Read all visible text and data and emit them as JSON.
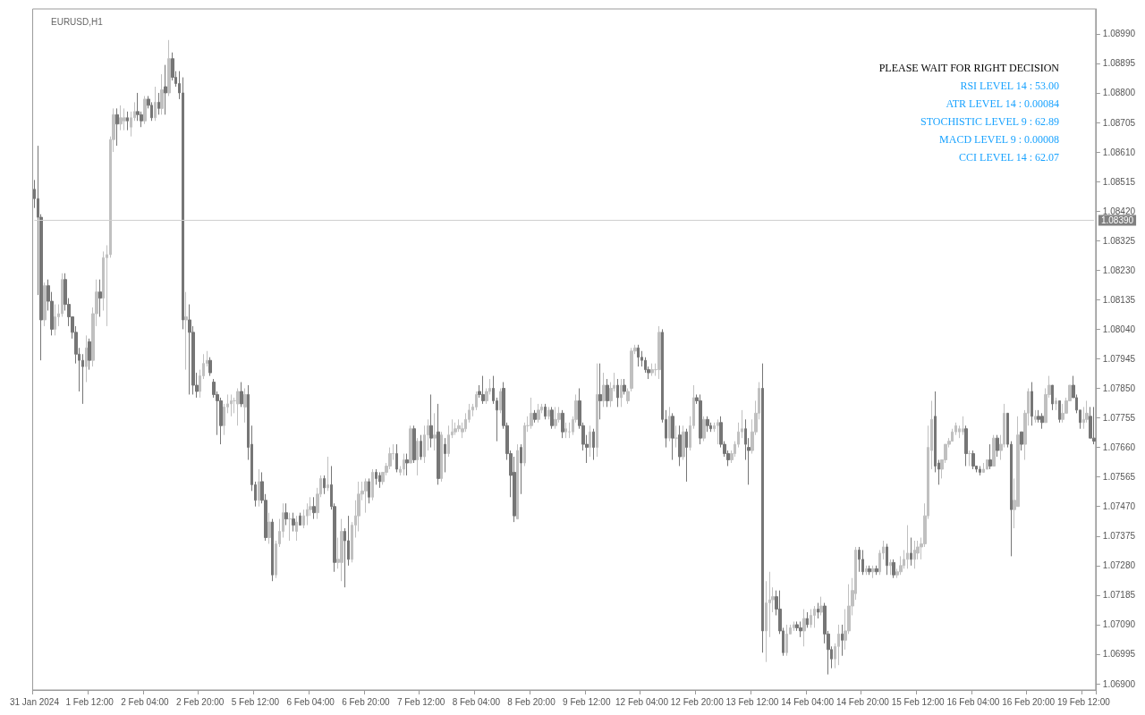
{
  "chart_data": {
    "type": "candlestick",
    "title": "EURUSD,H1",
    "annotations": [
      "PLEASE WAIT FOR RIGHT DECISION",
      "RSI LEVEL 14 : 53.00",
      "ATR LEVEL 14 : 0.00084",
      "STOCHISTIC LEVEL 9 : 62.89",
      "MACD LEVEL 9 : 0.00008",
      "CCI LEVEL 14 : 62.07"
    ],
    "colors": [
      "#767676",
      "#767676",
      "#767676",
      "#c0c0c0",
      "#767676",
      "#767676",
      "#c0c0c0",
      "#c0c0c0",
      "#c0c0c0",
      "#767676",
      "#767676",
      "#767676",
      "#767676",
      "#767676",
      "#767676",
      "#c0c0c0",
      "#767676",
      "#c0c0c0",
      "#c0c0c0",
      "#767676",
      "#c0c0c0",
      "#c0c0c0",
      "#c0c0c0",
      "#c0c0c0",
      "#767676",
      "#c0c0c0",
      "#c0c0c0",
      "#767676",
      "#c0c0c0",
      "#c0c0c0",
      "#767676",
      "#767676",
      "#c0c0c0",
      "#767676",
      "#767676",
      "#c0c0c0",
      "#767676",
      "#c0c0c0",
      "#767676",
      "#c0c0c0",
      "#767676",
      "#767676",
      "#767676",
      "#767676",
      "#c0c0c0",
      "#767676",
      "#767676",
      "#767676",
      "#c0c0c0",
      "#c0c0c0",
      "#c0c0c0",
      "#767676",
      "#767676",
      "#767676",
      "#767676",
      "#c0c0c0",
      "#c0c0c0",
      "#c0c0c0",
      "#c0c0c0",
      "#c0c0c0",
      "#767676",
      "#c0c0c0",
      "#767676",
      "#767676",
      "#767676",
      "#c0c0c0",
      "#767676",
      "#767676",
      "#c0c0c0",
      "#767676",
      "#c0c0c0",
      "#c0c0c0",
      "#c0c0c0",
      "#767676",
      "#c0c0c0",
      "#767676",
      "#c0c0c0",
      "#767676",
      "#c0c0c0",
      "#c0c0c0",
      "#c0c0c0",
      "#767676",
      "#c0c0c0",
      "#c0c0c0",
      "#767676",
      "#c0c0c0",
      "#767676",
      "#767676",
      "#c0c0c0",
      "#c0c0c0",
      "#767676",
      "#767676",
      "#c0c0c0",
      "#c0c0c0",
      "#c0c0c0",
      "#c0c0c0",
      "#c0c0c0",
      "#767676",
      "#c0c0c0",
      "#767676",
      "#767676",
      "#c0c0c0",
      "#c0c0c0",
      "#c0c0c0",
      "#c0c0c0",
      "#767676",
      "#c0c0c0",
      "#c0c0c0",
      "#767676",
      "#c0c0c0",
      "#767676",
      "#c0c0c0",
      "#767676",
      "#c0c0c0",
      "#c0c0c0",
      "#767676",
      "#c0c0c0",
      "#767676",
      "#c0c0c0",
      "#767676",
      "#c0c0c0",
      "#c0c0c0",
      "#c0c0c0",
      "#c0c0c0",
      "#c0c0c0",
      "#c0c0c0",
      "#c0c0c0",
      "#c0c0c0",
      "#c0c0c0",
      "#767676",
      "#767676",
      "#c0c0c0",
      "#c0c0c0",
      "#767676",
      "#767676",
      "#c0c0c0",
      "#767676",
      "#767676",
      "#767676",
      "#767676",
      "#c0c0c0",
      "#767676",
      "#c0c0c0",
      "#c0c0c0",
      "#c0c0c0",
      "#767676",
      "#c0c0c0",
      "#c0c0c0",
      "#767676",
      "#c0c0c0",
      "#767676",
      "#c0c0c0",
      "#c0c0c0",
      "#767676",
      "#c0c0c0",
      "#c0c0c0",
      "#c0c0c0",
      "#c0c0c0",
      "#767676",
      "#767676",
      "#767676",
      "#c0c0c0",
      "#767676",
      "#c0c0c0",
      "#767676",
      "#c0c0c0",
      "#767676",
      "#c0c0c0",
      "#c0c0c0",
      "#767676",
      "#c0c0c0",
      "#767676",
      "#c0c0c0",
      "#c0c0c0",
      "#c0c0c0",
      "#767676",
      "#767676",
      "#767676",
      "#767676",
      "#c0c0c0",
      "#c0c0c0",
      "#c0c0c0",
      "#767676",
      "#767676",
      "#c0c0c0",
      "#767676",
      "#c0c0c0",
      "#767676",
      "#c0c0c0",
      "#767676",
      "#c0c0c0",
      "#c0c0c0",
      "#767676",
      "#767676",
      "#c0c0c0",
      "#767676",
      "#767676",
      "#c0c0c0",
      "#c0c0c0",
      "#767676",
      "#767676",
      "#767676",
      "#c0c0c0",
      "#c0c0c0",
      "#c0c0c0",
      "#c0c0c0",
      "#767676",
      "#767676",
      "#c0c0c0",
      "#c0c0c0",
      "#c0c0c0",
      "#767676",
      "#c0c0c0",
      "#c0c0c0",
      "#c0c0c0",
      "#767676",
      "#767676",
      "#767676",
      "#c0c0c0",
      "#c0c0c0",
      "#c0c0c0",
      "#767676",
      "#767676",
      "#c0c0c0",
      "#767676",
      "#c0c0c0",
      "#c0c0c0",
      "#767676",
      "#c0c0c0",
      "#767676",
      "#767676",
      "#767676",
      "#c0c0c0",
      "#c0c0c0",
      "#767676",
      "#c0c0c0",
      "#c0c0c0",
      "#c0c0c0",
      "#c0c0c0",
      "#767676",
      "#767676",
      "#c0c0c0",
      "#767676",
      "#c0c0c0",
      "#767676",
      "#c0c0c0",
      "#c0c0c0",
      "#767676",
      "#c0c0c0",
      "#767676",
      "#c0c0c0",
      "#c0c0c0",
      "#c0c0c0",
      "#c0c0c0",
      "#767676",
      "#c0c0c0",
      "#c0c0c0",
      "#c0c0c0",
      "#c0c0c0",
      "#c0c0c0",
      "#c0c0c0",
      "#767676",
      "#767676",
      "#c0c0c0",
      "#c0c0c0",
      "#c0c0c0",
      "#c0c0c0",
      "#c0c0c0",
      "#c0c0c0",
      "#c0c0c0",
      "#767676",
      "#c0c0c0",
      "#767676",
      "#767676",
      "#767676",
      "#c0c0c0",
      "#c0c0c0",
      "#767676",
      "#c0c0c0",
      "#767676",
      "#c0c0c0",
      "#c0c0c0",
      "#767676",
      "#767676",
      "#c0c0c0",
      "#c0c0c0",
      "#767676",
      "#c0c0c0",
      "#c0c0c0",
      "#767676",
      "#c0c0c0",
      "#767676",
      "#767676",
      "#c0c0c0",
      "#c0c0c0",
      "#767676",
      "#c0c0c0",
      "#767676",
      "#c0c0c0",
      "#c0c0c0",
      "#c0c0c0",
      "#767676",
      "#767676",
      "#767676",
      "#c0c0c0",
      "#c0c0c0",
      "#767676",
      "#767676"
    ],
    "ylim": [
      1.0688,
      1.0907
    ],
    "yticks": [
      {
        "value": 1.069,
        "label": "1.06900"
      },
      1.06995,
      {
        "value": 1.0709,
        "label": "1.07090"
      },
      1.07185,
      {
        "value": 1.0728,
        "label": "1.07280"
      },
      1.07375,
      {
        "value": 1.0747,
        "label": "1.07470"
      },
      1.07565,
      {
        "value": 1.0766,
        "label": "1.07660"
      },
      1.07755,
      {
        "value": 1.0785,
        "label": "1.07850"
      },
      1.07945,
      {
        "value": 1.0804,
        "label": "1.08040"
      },
      1.08135,
      {
        "value": 1.0823,
        "label": "1.08230"
      },
      1.08325,
      {
        "value": 1.0842,
        "label": "1.08420"
      },
      1.08515,
      {
        "value": 1.0861,
        "label": "1.08610"
      },
      1.08705,
      {
        "value": 1.088,
        "label": "1.08800"
      },
      1.08895,
      {
        "value": 1.0899,
        "label": "1.08990"
      }
    ],
    "ref_lines": [
      {
        "axis": "y",
        "value": 1.0839,
        "label": "1.08390",
        "color": "#d0d0d0"
      }
    ],
    "categories": [
      "31 Jan 2024",
      null,
      null,
      null,
      null,
      null,
      null,
      null,
      null,
      null,
      null,
      null,
      null,
      null,
      null,
      null,
      "1 Feb 12:00",
      null,
      null,
      null,
      null,
      null,
      null,
      null,
      null,
      null,
      null,
      null,
      null,
      null,
      null,
      null,
      "2 Feb 04:00",
      null,
      null,
      null,
      null,
      null,
      null,
      null,
      null,
      null,
      null,
      null,
      null,
      null,
      null,
      null,
      "2 Feb 20:00",
      null,
      null,
      null,
      null,
      null,
      null,
      null,
      null,
      null,
      null,
      null,
      null,
      null,
      null,
      null,
      "5 Feb 12:00",
      null,
      null,
      null,
      null,
      null,
      null,
      null,
      null,
      null,
      null,
      null,
      null,
      null,
      null,
      null,
      "6 Feb 04:00",
      null,
      null,
      null,
      null,
      null,
      null,
      null,
      null,
      null,
      null,
      null,
      null,
      null,
      null,
      null,
      "6 Feb 20:00",
      null,
      null,
      null,
      null,
      null,
      null,
      null,
      null,
      null,
      null,
      null,
      null,
      null,
      null,
      null,
      "7 Feb 12:00",
      null,
      null,
      null,
      null,
      null,
      null,
      null,
      null,
      null,
      null,
      null,
      null,
      null,
      null,
      null,
      "8 Feb 04:00",
      null,
      null,
      null,
      null,
      null,
      null,
      null,
      null,
      null,
      null,
      null,
      null,
      null,
      null,
      null,
      "8 Feb 20:00",
      null,
      null,
      null,
      null,
      null,
      null,
      null,
      null,
      null,
      null,
      null,
      null,
      null,
      null,
      null,
      "9 Feb 12:00",
      null,
      null,
      null,
      null,
      null,
      null,
      null,
      null,
      null,
      null,
      null,
      null,
      null,
      null,
      null,
      "12 Feb 04:00",
      null,
      null,
      null,
      null,
      null,
      null,
      null,
      null,
      null,
      null,
      null,
      null,
      null,
      null,
      null,
      "12 Feb 20:00",
      null,
      null,
      null,
      null,
      null,
      null,
      null,
      null,
      null,
      null,
      null,
      null,
      null,
      null,
      null,
      "13 Feb 12:00",
      null,
      null,
      null,
      null,
      null,
      null,
      null,
      null,
      null,
      null,
      null,
      null,
      null,
      null,
      null,
      "14 Feb 04:00",
      null,
      null,
      null,
      null,
      null,
      null,
      null,
      null,
      null,
      null,
      null,
      null,
      null,
      null,
      null,
      "14 Feb 20:00",
      null,
      null,
      null,
      null,
      null,
      null,
      null,
      null,
      null,
      null,
      null,
      null,
      null,
      null,
      null,
      "15 Feb 12:00",
      null,
      null,
      null,
      null,
      null,
      null,
      null,
      null,
      null,
      null,
      null,
      null,
      null,
      null,
      null,
      "16 Feb 04:00",
      null,
      null,
      null,
      null,
      null,
      null,
      null,
      null,
      null,
      null,
      null,
      null,
      null,
      null,
      null,
      "16 Feb 20:00",
      null,
      null,
      null,
      null,
      null,
      null,
      null,
      null,
      null,
      null,
      null,
      null,
      null,
      null,
      null,
      "19 Feb 12:00",
      null,
      null,
      null
    ],
    "ohlc": [
      [
        1.0849,
        1.0852,
        1.0843,
        1.0846
      ],
      [
        1.0846,
        1.0863,
        1.0815,
        1.084
      ],
      [
        1.084,
        1.0841,
        1.0794,
        1.0807
      ],
      [
        1.0807,
        1.0819,
        1.0805,
        1.0818
      ],
      [
        1.0818,
        1.082,
        1.081,
        1.0813
      ],
      [
        1.0813,
        1.0816,
        1.0802,
        1.0804
      ],
      [
        1.0804,
        1.0812,
        1.0802,
        1.0808
      ],
      [
        1.0808,
        1.0812,
        1.0805,
        1.0809
      ],
      [
        1.0809,
        1.0822,
        1.0808,
        1.082
      ],
      [
        1.082,
        1.0822,
        1.081,
        1.0812
      ],
      [
        1.0812,
        1.0814,
        1.0805,
        1.0808
      ],
      [
        1.0808,
        1.0808,
        1.0801,
        1.0803
      ],
      [
        1.0803,
        1.0805,
        1.0793,
        1.0796
      ],
      [
        1.0796,
        1.0798,
        1.0784,
        1.0794
      ],
      [
        1.0794,
        1.0796,
        1.078,
        1.0792
      ],
      [
        1.0792,
        1.0802,
        1.0787,
        1.0798
      ],
      [
        1.08,
        1.0801,
        1.0791,
        1.0794
      ],
      [
        1.0794,
        1.0811,
        1.0792,
        1.0809
      ],
      [
        1.0809,
        1.082,
        1.0805,
        1.0816
      ],
      [
        1.0816,
        1.082,
        1.0808,
        1.0814
      ],
      [
        1.0814,
        1.0829,
        1.081,
        1.0827
      ],
      [
        1.0827,
        1.0831,
        1.0805,
        1.0828
      ],
      [
        1.0828,
        1.0866,
        1.0827,
        1.0865
      ],
      [
        1.0865,
        1.0875,
        1.0861,
        1.0873
      ],
      [
        1.0873,
        1.0875,
        1.0863,
        1.087
      ],
      [
        1.087,
        1.0876,
        1.0868,
        1.0872
      ],
      [
        1.0871,
        1.0875,
        1.0868,
        1.0872
      ],
      [
        1.0872,
        1.0874,
        1.0868,
        1.0871
      ],
      [
        1.0869,
        1.0874,
        1.0866,
        1.0872
      ],
      [
        1.0872,
        1.0877,
        1.0871,
        1.0874
      ],
      [
        1.0874,
        1.088,
        1.0871,
        1.0873
      ],
      [
        1.0873,
        1.0874,
        1.0869,
        1.0871
      ],
      [
        1.0871,
        1.0879,
        1.087,
        1.0878
      ],
      [
        1.0878,
        1.0879,
        1.0875,
        1.0876
      ],
      [
        1.0876,
        1.0877,
        1.0871,
        1.0872
      ],
      [
        1.0872,
        1.0882,
        1.0871,
        1.0877
      ],
      [
        1.0877,
        1.088,
        1.0873,
        1.0875
      ],
      [
        1.0875,
        1.0886,
        1.0873,
        1.0881
      ],
      [
        1.0882,
        1.0889,
        1.0873,
        1.088
      ],
      [
        1.088,
        1.0897,
        1.0879,
        1.0891
      ],
      [
        1.0891,
        1.0893,
        1.0884,
        1.0885
      ],
      [
        1.0885,
        1.0887,
        1.0882,
        1.0883
      ],
      [
        1.0883,
        1.0887,
        1.0878,
        1.088
      ],
      [
        1.088,
        1.0885,
        1.0804,
        1.0807
      ],
      [
        1.0807,
        1.0816,
        1.0791,
        1.0808
      ],
      [
        1.0807,
        1.0812,
        1.0783,
        1.0803
      ],
      [
        1.0803,
        1.0805,
        1.0783,
        1.0786
      ],
      [
        1.0786,
        1.079,
        1.0782,
        1.0784
      ],
      [
        1.0784,
        1.0791,
        1.0782,
        1.0789
      ],
      [
        1.0789,
        1.0796,
        1.0788,
        1.0793
      ],
      [
        1.0793,
        1.0797,
        1.0792,
        1.0794
      ],
      [
        1.0794,
        1.0795,
        1.0789,
        1.079
      ],
      [
        1.0787,
        1.0788,
        1.0782,
        1.0783
      ],
      [
        1.0783,
        1.0784,
        1.077,
        1.0781
      ],
      [
        1.0781,
        1.0782,
        1.0767,
        1.0773
      ],
      [
        1.0773,
        1.078,
        1.077,
        1.0779
      ],
      [
        1.0779,
        1.0783,
        1.0777,
        1.078
      ],
      [
        1.078,
        1.0783,
        1.0776,
        1.0781
      ],
      [
        1.0781,
        1.0782,
        1.0777,
        1.0781
      ],
      [
        1.078,
        1.0785,
        1.0773,
        1.0784
      ],
      [
        1.0784,
        1.0787,
        1.0779,
        1.078
      ],
      [
        1.0779,
        1.0785,
        1.0774,
        1.0783
      ],
      [
        1.0783,
        1.0786,
        1.0762,
        1.0766
      ],
      [
        1.0767,
        1.0773,
        1.0752,
        1.0754
      ],
      [
        1.0754,
        1.0755,
        1.0747,
        1.0749
      ],
      [
        1.0749,
        1.0759,
        1.0747,
        1.0755
      ],
      [
        1.0755,
        1.0758,
        1.0748,
        1.0749
      ],
      [
        1.0749,
        1.0751,
        1.0736,
        1.0737
      ],
      [
        1.0737,
        1.0745,
        1.0735,
        1.0742
      ],
      [
        1.0742,
        1.0743,
        1.0723,
        1.0725
      ],
      [
        1.0725,
        1.0736,
        1.0724,
        1.0735
      ],
      [
        1.0735,
        1.0743,
        1.0734,
        1.0739
      ],
      [
        1.0739,
        1.0748,
        1.0737,
        1.0745
      ],
      [
        1.0745,
        1.0748,
        1.0741,
        1.0743
      ],
      [
        1.0743,
        1.0745,
        1.0736,
        1.0743
      ],
      [
        1.0743,
        1.0745,
        1.0739,
        1.0741
      ],
      [
        1.0739,
        1.0744,
        1.0736,
        1.0742
      ],
      [
        1.0744,
        1.0745,
        1.0741,
        1.0741
      ],
      [
        1.0741,
        1.0746,
        1.074,
        1.0744
      ],
      [
        1.0744,
        1.0748,
        1.0741,
        1.0746
      ],
      [
        1.0746,
        1.075,
        1.0744,
        1.0747
      ],
      [
        1.0747,
        1.075,
        1.0743,
        1.0745
      ],
      [
        1.0745,
        1.0753,
        1.0743,
        1.0751
      ],
      [
        1.0751,
        1.0757,
        1.075,
        1.0756
      ],
      [
        1.0756,
        1.0757,
        1.0751,
        1.0753
      ],
      [
        1.0753,
        1.0763,
        1.0752,
        1.0754
      ],
      [
        1.0754,
        1.076,
        1.0746,
        1.0747
      ],
      [
        1.0747,
        1.0748,
        1.0726,
        1.0729
      ],
      [
        1.0729,
        1.0737,
        1.0727,
        1.073
      ],
      [
        1.0729,
        1.0743,
        1.0723,
        1.0739
      ],
      [
        1.0739,
        1.074,
        1.0721,
        1.0736
      ],
      [
        1.0736,
        1.0744,
        1.0728,
        1.073
      ],
      [
        1.073,
        1.0742,
        1.0729,
        1.0741
      ],
      [
        1.0741,
        1.0749,
        1.0737,
        1.0744
      ],
      [
        1.0744,
        1.0755,
        1.0739,
        1.0751
      ],
      [
        1.0751,
        1.0755,
        1.0749,
        1.0752
      ],
      [
        1.0752,
        1.0756,
        1.0745,
        1.0755
      ],
      [
        1.0755,
        1.0756,
        1.0748,
        1.075
      ],
      [
        1.075,
        1.0759,
        1.0749,
        1.0758
      ],
      [
        1.0758,
        1.0759,
        1.0754,
        1.0756
      ],
      [
        1.0757,
        1.0758,
        1.0753,
        1.0755
      ],
      [
        1.0755,
        1.0758,
        1.0754,
        1.0758
      ],
      [
        1.0758,
        1.0761,
        1.0757,
        1.076
      ],
      [
        1.076,
        1.0766,
        1.0759,
        1.0764
      ],
      [
        1.0764,
        1.0767,
        1.0762,
        1.0764
      ],
      [
        1.0764,
        1.0767,
        1.0758,
        1.0759
      ],
      [
        1.0758,
        1.076,
        1.0757,
        1.0759
      ],
      [
        1.0759,
        1.0764,
        1.0757,
        1.0762
      ],
      [
        1.0762,
        1.0764,
        1.0757,
        1.0761
      ],
      [
        1.0761,
        1.0773,
        1.0761,
        1.0772
      ],
      [
        1.0772,
        1.0773,
        1.0761,
        1.0762
      ],
      [
        1.0762,
        1.0769,
        1.0757,
        1.0768
      ],
      [
        1.0768,
        1.077,
        1.0762,
        1.0763
      ],
      [
        1.0763,
        1.0773,
        1.0761,
        1.077
      ],
      [
        1.077,
        1.0775,
        1.0765,
        1.0773
      ],
      [
        1.0773,
        1.0783,
        1.0766,
        1.0769
      ],
      [
        1.0769,
        1.0777,
        1.0765,
        1.077
      ],
      [
        1.0771,
        1.078,
        1.0754,
        1.0756
      ],
      [
        1.0756,
        1.0771,
        1.0755,
        1.077
      ],
      [
        1.0767,
        1.0769,
        1.0758,
        1.0764
      ],
      [
        1.0764,
        1.0773,
        1.0763,
        1.077
      ],
      [
        1.077,
        1.0775,
        1.0769,
        1.0771
      ],
      [
        1.0771,
        1.0774,
        1.077,
        1.0772
      ],
      [
        1.0772,
        1.0775,
        1.0771,
        1.0773
      ],
      [
        1.0771,
        1.0774,
        1.0769,
        1.0772
      ],
      [
        1.0772,
        1.0777,
        1.0771,
        1.0775
      ],
      [
        1.0775,
        1.078,
        1.0774,
        1.0778
      ],
      [
        1.0778,
        1.078,
        1.0776,
        1.0779
      ],
      [
        1.0779,
        1.0784,
        1.0778,
        1.0783
      ],
      [
        1.0784,
        1.0786,
        1.0782,
        1.0783
      ],
      [
        1.0783,
        1.0789,
        1.078,
        1.0781
      ],
      [
        1.0781,
        1.0785,
        1.078,
        1.0784
      ],
      [
        1.0784,
        1.0788,
        1.0783,
        1.0785
      ],
      [
        1.0785,
        1.0789,
        1.078,
        1.0781
      ],
      [
        1.0781,
        1.0782,
        1.0768,
        1.0778
      ],
      [
        1.0778,
        1.0785,
        1.0777,
        1.0784
      ],
      [
        1.0785,
        1.0787,
        1.0772,
        1.0773
      ],
      [
        1.0773,
        1.0774,
        1.0762,
        1.0764
      ],
      [
        1.0764,
        1.0765,
        1.075,
        1.0757
      ],
      [
        1.0758,
        1.0763,
        1.0742,
        1.0744
      ],
      [
        1.0743,
        1.0767,
        1.0743,
        1.0765
      ],
      [
        1.0766,
        1.0767,
        1.0751,
        1.0761
      ],
      [
        1.0761,
        1.0774,
        1.076,
        1.0773
      ],
      [
        1.0773,
        1.0776,
        1.0771,
        1.0773
      ],
      [
        1.0773,
        1.0782,
        1.0772,
        1.0777
      ],
      [
        1.0777,
        1.0778,
        1.0774,
        1.0775
      ],
      [
        1.0775,
        1.078,
        1.0774,
        1.0778
      ],
      [
        1.0778,
        1.078,
        1.0777,
        1.0779
      ],
      [
        1.0779,
        1.078,
        1.0775,
        1.0776
      ],
      [
        1.0776,
        1.0779,
        1.0775,
        1.0778
      ],
      [
        1.0778,
        1.0779,
        1.0772,
        1.0773
      ],
      [
        1.0773,
        1.0779,
        1.0772,
        1.0775
      ],
      [
        1.0775,
        1.0779,
        1.0774,
        1.0777
      ],
      [
        1.0777,
        1.0778,
        1.0769,
        1.0771
      ],
      [
        1.0771,
        1.0774,
        1.0769,
        1.0772
      ],
      [
        1.0771,
        1.0774,
        1.0769,
        1.0771
      ],
      [
        1.0771,
        1.0776,
        1.077,
        1.0775
      ],
      [
        1.0775,
        1.0783,
        1.0774,
        1.0781
      ],
      [
        1.0781,
        1.0785,
        1.0772,
        1.0773
      ],
      [
        1.0773,
        1.0774,
        1.0765,
        1.0767
      ],
      [
        1.0767,
        1.077,
        1.0761,
        1.0766
      ],
      [
        1.0766,
        1.0773,
        1.0763,
        1.0771
      ],
      [
        1.0771,
        1.0772,
        1.0762,
        1.0766
      ],
      [
        1.0766,
        1.0793,
        1.0763,
        1.0783
      ],
      [
        1.0783,
        1.0793,
        1.0775,
        1.0781
      ],
      [
        1.0781,
        1.079,
        1.0779,
        1.0786
      ],
      [
        1.0786,
        1.0788,
        1.0779,
        1.0781
      ],
      [
        1.0781,
        1.0787,
        1.0779,
        1.0785
      ],
      [
        1.0785,
        1.079,
        1.0784,
        1.0786
      ],
      [
        1.0786,
        1.0788,
        1.0779,
        1.0782
      ],
      [
        1.0782,
        1.0788,
        1.0779,
        1.0786
      ],
      [
        1.0786,
        1.0788,
        1.0783,
        1.0784
      ],
      [
        1.0781,
        1.0785,
        1.078,
        1.0784
      ],
      [
        1.0785,
        1.0798,
        1.0784,
        1.0797
      ],
      [
        1.0797,
        1.0799,
        1.0796,
        1.0798
      ],
      [
        1.0798,
        1.0799,
        1.0792,
        1.0795
      ],
      [
        1.0795,
        1.0797,
        1.0792,
        1.0794
      ],
      [
        1.0794,
        1.0795,
        1.079,
        1.0791
      ],
      [
        1.0791,
        1.0792,
        1.0788,
        1.079
      ],
      [
        1.079,
        1.0793,
        1.0789,
        1.0791
      ],
      [
        1.0791,
        1.0793,
        1.0789,
        1.0791
      ],
      [
        1.0791,
        1.0805,
        1.0788,
        1.0803
      ],
      [
        1.0803,
        1.0804,
        1.0774,
        1.0775
      ],
      [
        1.0775,
        1.0778,
        1.0766,
        1.0769
      ],
      [
        1.0769,
        1.0779,
        1.0768,
        1.0776
      ],
      [
        1.0776,
        1.0777,
        1.0762,
        1.0769
      ],
      [
        1.0769,
        1.0773,
        1.0766,
        1.0769
      ],
      [
        1.077,
        1.0773,
        1.076,
        1.0763
      ],
      [
        1.0763,
        1.0773,
        1.0762,
        1.0771
      ],
      [
        1.0771,
        1.0772,
        1.0755,
        1.0766
      ],
      [
        1.0766,
        1.0776,
        1.0765,
        1.0773
      ],
      [
        1.0773,
        1.0786,
        1.0772,
        1.0782
      ],
      [
        1.0782,
        1.0783,
        1.078,
        1.0781
      ],
      [
        1.0781,
        1.0783,
        1.0767,
        1.0769
      ],
      [
        1.0769,
        1.0776,
        1.0768,
        1.0775
      ],
      [
        1.0775,
        1.0776,
        1.0771,
        1.0773
      ],
      [
        1.0773,
        1.0774,
        1.0771,
        1.0772
      ],
      [
        1.0772,
        1.0774,
        1.0771,
        1.0773
      ],
      [
        1.0773,
        1.0775,
        1.0767,
        1.0774
      ],
      [
        1.0774,
        1.0776,
        1.0766,
        1.0767
      ],
      [
        1.0767,
        1.0768,
        1.0763,
        1.0764
      ],
      [
        1.0764,
        1.0765,
        1.076,
        1.0762
      ],
      [
        1.0762,
        1.0765,
        1.0761,
        1.0764
      ],
      [
        1.0764,
        1.0768,
        1.0763,
        1.0767
      ],
      [
        1.0767,
        1.0774,
        1.0766,
        1.0771
      ],
      [
        1.0771,
        1.0778,
        1.0769,
        1.0772
      ],
      [
        1.0772,
        1.0775,
        1.0762,
        1.0767
      ],
      [
        1.0766,
        1.0769,
        1.0754,
        1.0765
      ],
      [
        1.0765,
        1.0775,
        1.0764,
        1.0771
      ],
      [
        1.0771,
        1.0781,
        1.077,
        1.0777
      ],
      [
        1.0777,
        1.0787,
        1.0775,
        1.0785
      ],
      [
        1.0785,
        1.0793,
        1.07,
        1.0707
      ],
      [
        1.0707,
        1.0723,
        1.0697,
        1.0716
      ],
      [
        1.0716,
        1.0726,
        1.0705,
        1.0717
      ],
      [
        1.0717,
        1.0721,
        1.0713,
        1.0718
      ],
      [
        1.0718,
        1.072,
        1.0712,
        1.0714
      ],
      [
        1.0714,
        1.072,
        1.0706,
        1.0707
      ],
      [
        1.0707,
        1.0708,
        1.0699,
        1.07
      ],
      [
        1.07,
        1.0709,
        1.0699,
        1.0706
      ],
      [
        1.0706,
        1.0709,
        1.0706,
        1.0708
      ],
      [
        1.0708,
        1.071,
        1.0707,
        1.0709
      ],
      [
        1.0709,
        1.071,
        1.0707,
        1.0708
      ],
      [
        1.0708,
        1.071,
        1.0705,
        1.0707
      ],
      [
        1.0707,
        1.0714,
        1.0702,
        1.0711
      ],
      [
        1.0711,
        1.0713,
        1.0708,
        1.0709
      ],
      [
        1.0709,
        1.0714,
        1.0708,
        1.0712
      ],
      [
        1.0712,
        1.0715,
        1.0708,
        1.0714
      ],
      [
        1.0714,
        1.0716,
        1.0711,
        1.0713
      ],
      [
        1.0713,
        1.0718,
        1.0712,
        1.0715
      ],
      [
        1.0715,
        1.0716,
        1.0703,
        1.0706
      ],
      [
        1.0706,
        1.0707,
        1.0693,
        1.0701
      ],
      [
        1.0701,
        1.0702,
        1.0695,
        1.0698
      ],
      [
        1.0698,
        1.0703,
        1.0695,
        1.0702
      ],
      [
        1.0702,
        1.0709,
        1.0696,
        1.0706
      ],
      [
        1.0706,
        1.0709,
        1.0699,
        1.0704
      ],
      [
        1.0704,
        1.0714,
        1.0701,
        1.0707
      ],
      [
        1.0707,
        1.0722,
        1.0706,
        1.0715
      ],
      [
        1.0715,
        1.0724,
        1.0712,
        1.072
      ],
      [
        1.0719,
        1.0734,
        1.0717,
        1.0733
      ],
      [
        1.0733,
        1.0734,
        1.0726,
        1.073
      ],
      [
        1.073,
        1.0733,
        1.0725,
        1.0726
      ],
      [
        1.0726,
        1.0728,
        1.0725,
        1.0727
      ],
      [
        1.0727,
        1.0728,
        1.0725,
        1.0726
      ],
      [
        1.0726,
        1.0728,
        1.0724,
        1.0727
      ],
      [
        1.0727,
        1.0728,
        1.0725,
        1.0726
      ],
      [
        1.0726,
        1.0733,
        1.0725,
        1.0732
      ],
      [
        1.0732,
        1.0736,
        1.073,
        1.0734
      ],
      [
        1.0734,
        1.0735,
        1.0725,
        1.0728
      ],
      [
        1.0728,
        1.073,
        1.0725,
        1.0729
      ],
      [
        1.0729,
        1.073,
        1.0724,
        1.0725
      ],
      [
        1.0725,
        1.0727,
        1.0724,
        1.0726
      ],
      [
        1.0726,
        1.0731,
        1.0725,
        1.0728
      ],
      [
        1.0728,
        1.0733,
        1.0727,
        1.073
      ],
      [
        1.073,
        1.0741,
        1.0727,
        1.0732
      ],
      [
        1.0732,
        1.0737,
        1.0728,
        1.073
      ],
      [
        1.073,
        1.0736,
        1.0727,
        1.0733
      ],
      [
        1.0732,
        1.0736,
        1.073,
        1.0734
      ],
      [
        1.0734,
        1.0737,
        1.073,
        1.0735
      ],
      [
        1.0735,
        1.0748,
        1.0734,
        1.0744
      ],
      [
        1.0744,
        1.0773,
        1.0743,
        1.0766
      ],
      [
        1.0765,
        1.0781,
        1.0759,
        1.0775
      ],
      [
        1.0776,
        1.0784,
        1.0758,
        1.076
      ],
      [
        1.0761,
        1.0762,
        1.0754,
        1.0759
      ],
      [
        1.0759,
        1.0762,
        1.0756,
        1.0762
      ],
      [
        1.0762,
        1.0767,
        1.0761,
        1.0767
      ],
      [
        1.0767,
        1.0769,
        1.0766,
        1.0768
      ],
      [
        1.0768,
        1.0772,
        1.0768,
        1.0771
      ],
      [
        1.0771,
        1.0774,
        1.077,
        1.0773
      ],
      [
        1.0771,
        1.0773,
        1.0769,
        1.0772
      ],
      [
        1.0771,
        1.0776,
        1.077,
        1.0772
      ],
      [
        1.0772,
        1.0773,
        1.076,
        1.0764
      ],
      [
        1.0764,
        1.0765,
        1.076,
        1.0764
      ],
      [
        1.0764,
        1.0765,
        1.0759,
        1.076
      ],
      [
        1.076,
        1.076,
        1.0758,
        1.0759
      ],
      [
        1.0759,
        1.076,
        1.0757,
        1.0758
      ],
      [
        1.0758,
        1.0761,
        1.0758,
        1.0759
      ],
      [
        1.0759,
        1.0762,
        1.0759,
        1.0762
      ],
      [
        1.0762,
        1.0767,
        1.0759,
        1.076
      ],
      [
        1.076,
        1.077,
        1.076,
        1.0769
      ],
      [
        1.0769,
        1.077,
        1.0763,
        1.0765
      ],
      [
        1.0765,
        1.077,
        1.0762,
        1.0767
      ],
      [
        1.0767,
        1.078,
        1.0766,
        1.0777
      ],
      [
        1.0777,
        1.0777,
        1.0766,
        1.0767
      ],
      [
        1.0767,
        1.0768,
        1.0731,
        1.0746
      ],
      [
        1.0746,
        1.0756,
        1.074,
        1.0749
      ],
      [
        1.0747,
        1.0776,
        1.0747,
        1.077
      ],
      [
        1.0771,
        1.0771,
        1.0765,
        1.0767
      ],
      [
        1.0767,
        1.0778,
        1.0762,
        1.0777
      ],
      [
        1.0777,
        1.0785,
        1.0773,
        1.0784
      ],
      [
        1.0784,
        1.0787,
        1.0773,
        1.0776
      ],
      [
        1.0775,
        1.0778,
        1.0774,
        1.0776
      ],
      [
        1.0776,
        1.0778,
        1.0774,
        1.0775
      ],
      [
        1.0776,
        1.0777,
        1.0772,
        1.0774
      ],
      [
        1.0774,
        1.0785,
        1.0774,
        1.0783
      ],
      [
        1.0783,
        1.0789,
        1.0782,
        1.0786
      ],
      [
        1.0786,
        1.0786,
        1.0778,
        1.078
      ],
      [
        1.078,
        1.0782,
        1.0778,
        1.0781
      ],
      [
        1.0781,
        1.0781,
        1.0774,
        1.0775
      ],
      [
        1.0775,
        1.078,
        1.0774,
        1.0777
      ],
      [
        1.0777,
        1.0782,
        1.0777,
        1.0781
      ],
      [
        1.0781,
        1.0786,
        1.0781,
        1.0786
      ],
      [
        1.0786,
        1.0789,
        1.0782,
        1.0782
      ],
      [
        1.0782,
        1.0783,
        1.0777,
        1.0778
      ],
      [
        1.0778,
        1.0778,
        1.0772,
        1.0774
      ],
      [
        1.0774,
        1.0779,
        1.0772,
        1.0775
      ],
      [
        1.0775,
        1.0781,
        1.0774,
        1.0777
      ],
      [
        1.0776,
        1.0779,
        1.0769,
        1.0769
      ],
      [
        1.0769,
        1.0779,
        1.0767,
        1.0768
      ]
    ]
  }
}
